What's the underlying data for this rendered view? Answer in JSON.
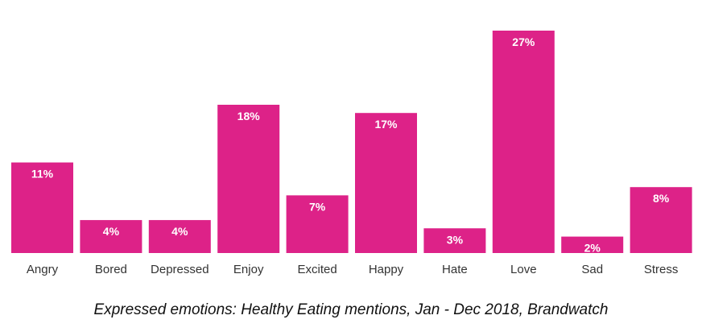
{
  "chart_data": {
    "type": "bar",
    "categories": [
      "Angry",
      "Bored",
      "Depressed",
      "Enjoy",
      "Excited",
      "Happy",
      "Hate",
      "Love",
      "Sad",
      "Stress"
    ],
    "values": [
      11,
      4,
      4,
      18,
      7,
      17,
      3,
      27,
      2,
      8
    ],
    "value_labels": [
      "11%",
      "4%",
      "4%",
      "18%",
      "7%",
      "17%",
      "3%",
      "27%",
      "2%",
      "8%"
    ],
    "title": "",
    "xlabel": "",
    "ylabel": "",
    "ylim": [
      0,
      27
    ],
    "grid": false,
    "bar_color": "#dd2288"
  },
  "caption": "Expressed emotions: Healthy Eating mentions, Jan - Dec 2018, Brandwatch"
}
